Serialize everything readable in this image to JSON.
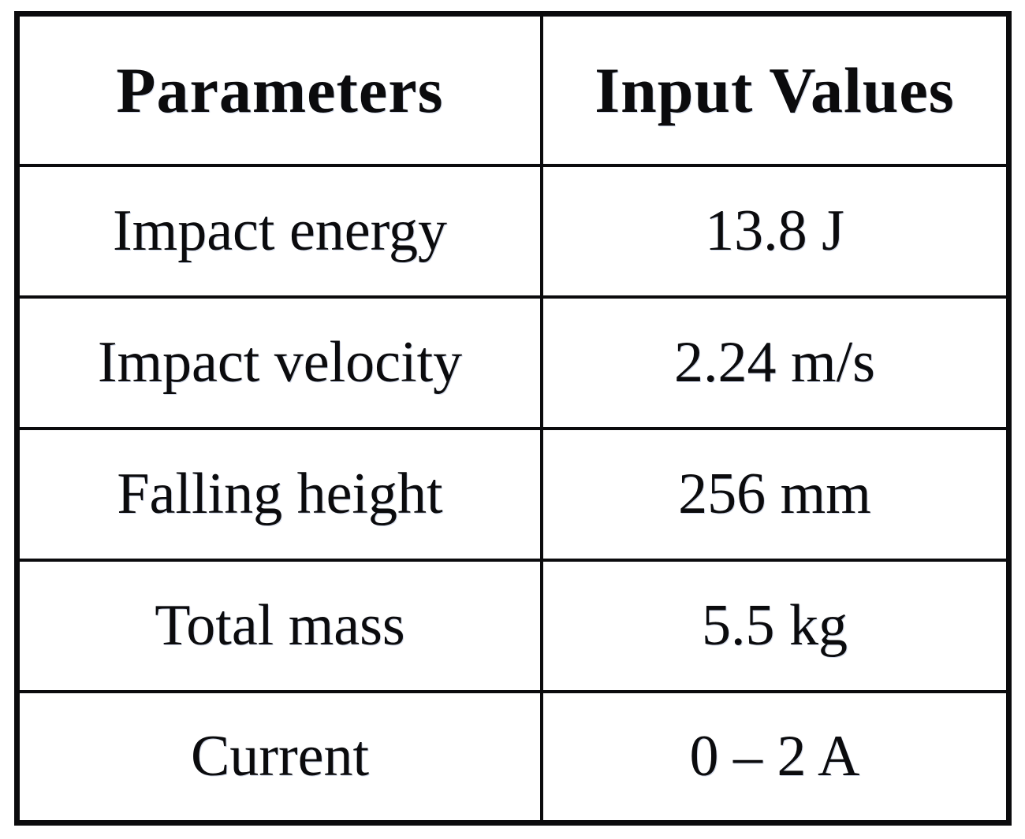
{
  "table": {
    "columns": [
      {
        "label": "Parameters"
      },
      {
        "label": "Input Values"
      }
    ],
    "rows": [
      {
        "parameter": "Impact energy",
        "value": "13.8 J"
      },
      {
        "parameter": "Impact velocity",
        "value": "2.24 m/s"
      },
      {
        "parameter": "Falling height",
        "value": "256 mm"
      },
      {
        "parameter": "Total mass",
        "value": "5.5 kg"
      },
      {
        "parameter": "Current",
        "value": "0 – 2 A"
      }
    ]
  },
  "colors": {
    "border": "#0b0b0d",
    "text": "#0b0b0d",
    "background": "#ffffff"
  }
}
